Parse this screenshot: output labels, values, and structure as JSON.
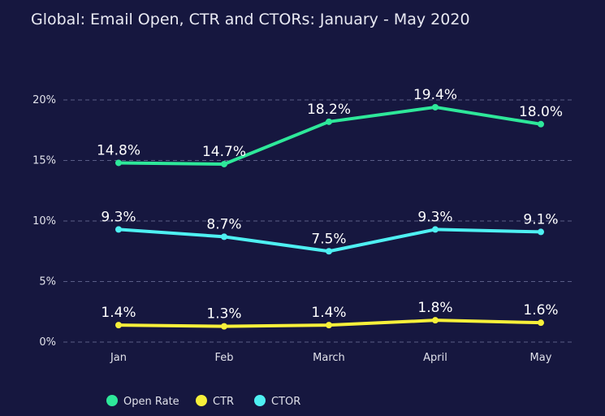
{
  "chart_data": {
    "type": "line",
    "title": "Global: Email Open, CTR and CTORs: January - May 2020",
    "categories": [
      "Jan",
      "Feb",
      "March",
      "April",
      "May"
    ],
    "ylim": [
      0,
      20
    ],
    "yticks": [
      "0%",
      "5%",
      "10%",
      "15%",
      "20%"
    ],
    "ytick_values": [
      0,
      5,
      10,
      15,
      20
    ],
    "grid": true,
    "legend_position": "bottom-left",
    "series": [
      {
        "name": "Open Rate",
        "color": "#2ee89a",
        "values": [
          14.8,
          14.7,
          18.2,
          19.4,
          18.0
        ],
        "labels": [
          "14.8%",
          "14.7%",
          "18.2%",
          "19.4%",
          "18.0%"
        ]
      },
      {
        "name": "CTR",
        "color": "#f7f03a",
        "values": [
          1.4,
          1.3,
          1.4,
          1.8,
          1.6
        ],
        "labels": [
          "1.4%",
          "1.3%",
          "1.4%",
          "1.8%",
          "1.6%"
        ]
      },
      {
        "name": "CTOR",
        "color": "#4ef0f2",
        "values": [
          9.3,
          8.7,
          7.5,
          9.3,
          9.1
        ],
        "labels": [
          "9.3%",
          "8.7%",
          "7.5%",
          "9.3%",
          "9.1%"
        ]
      }
    ]
  }
}
